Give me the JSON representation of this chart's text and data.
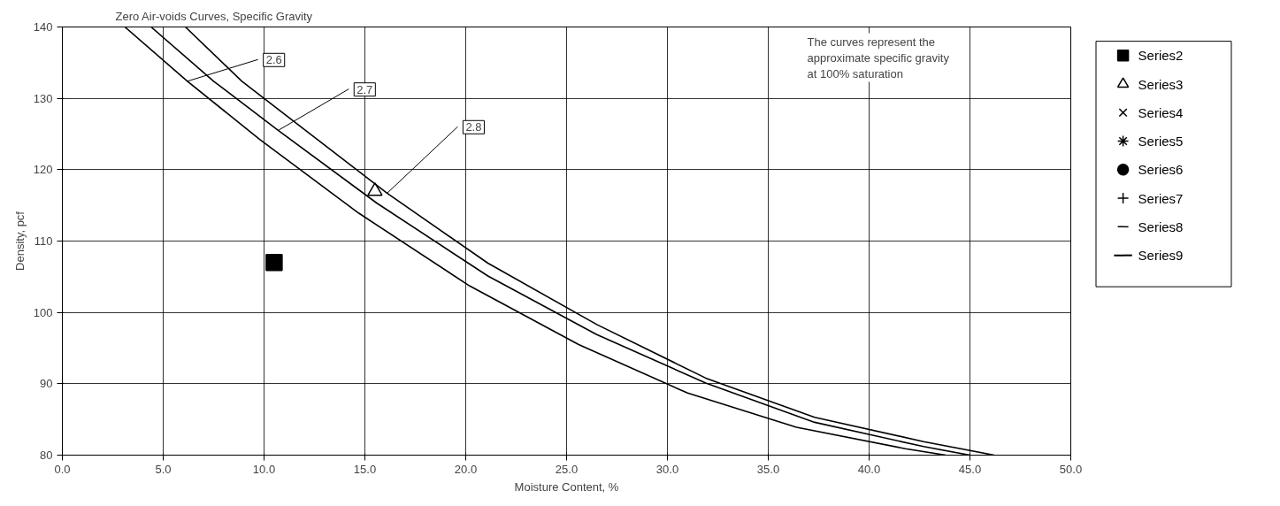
{
  "chart_data": {
    "type": "scatter",
    "title": "Zero Air-voids Curves, Specific Gravity",
    "xlabel": "Moisture Content, %",
    "ylabel": "Density, pcf",
    "xlim": [
      0,
      50
    ],
    "ylim": [
      80,
      140
    ],
    "xticks": [
      {
        "value": 0,
        "label": "0.0"
      },
      {
        "value": 5,
        "label": "5.0"
      },
      {
        "value": 10,
        "label": "10.0"
      },
      {
        "value": 15,
        "label": "15.0"
      },
      {
        "value": 20,
        "label": "20.0"
      },
      {
        "value": 25,
        "label": "25.0"
      },
      {
        "value": 30,
        "label": "30.0"
      },
      {
        "value": 35,
        "label": "35.0"
      },
      {
        "value": 40,
        "label": "40.0"
      },
      {
        "value": 45,
        "label": "45.0"
      },
      {
        "value": 50,
        "label": "50.0"
      }
    ],
    "yticks": [
      80,
      90,
      100,
      110,
      120,
      130,
      140
    ],
    "grid": true,
    "legend": "right",
    "series": [
      {
        "name": "Series2",
        "color": "#000000",
        "marker": "square",
        "x": [
          10.5
        ],
        "values": [
          107
        ]
      },
      {
        "name": "Series3",
        "color": "#000000",
        "marker": "triangle",
        "x": [
          15.5
        ],
        "values": [
          117
        ]
      },
      {
        "name": "Series4",
        "color": "#000000",
        "marker": "cross"
      },
      {
        "name": "Series5",
        "color": "#000000",
        "marker": "star"
      },
      {
        "name": "Series6",
        "color": "#000000",
        "marker": "circle"
      },
      {
        "name": "Series7",
        "color": "#000000",
        "marker": "plus"
      },
      {
        "name": "Series8",
        "color": "#000000",
        "marker": "dash"
      },
      {
        "name": "Series9",
        "color": "#000000",
        "type": "line"
      },
      {
        "type": "line",
        "color": "#000000",
        "x": [
          3.1,
          6.2,
          9.8,
          14.7,
          20.2,
          25.6,
          31.0,
          36.4,
          41.8,
          43.8
        ],
        "values": [
          140,
          132.4,
          124.2,
          113.9,
          103.7,
          95.5,
          88.7,
          83.9,
          80.9,
          80
        ]
      },
      {
        "type": "line",
        "color": "#000000",
        "x": [
          4.4,
          7.5,
          10.7,
          15.6,
          21.1,
          26.5,
          31.9,
          37.3,
          42.7,
          45.0
        ],
        "values": [
          140,
          132.4,
          125.5,
          115.3,
          105.1,
          96.9,
          90.1,
          84.6,
          81.2,
          80
        ]
      },
      {
        "type": "line",
        "color": "#000000",
        "x": [
          6.1,
          8.9,
          11.6,
          16.1,
          21.1,
          26.5,
          31.9,
          37.3,
          42.7,
          46.2
        ],
        "values": [
          140,
          132.4,
          126.5,
          116.7,
          106.9,
          98.3,
          90.8,
          85.3,
          81.9,
          80
        ]
      }
    ],
    "annotations": [
      {
        "text": "2.6",
        "x": 6.2,
        "y": 132.4
      },
      {
        "text": "2.7",
        "x": 10.7,
        "y": 125.5
      },
      {
        "text": "2.8",
        "x": 16.1,
        "y": 116.7
      },
      "The curves represent the\napproximate specific gravity\nat 100% saturation"
    ]
  }
}
